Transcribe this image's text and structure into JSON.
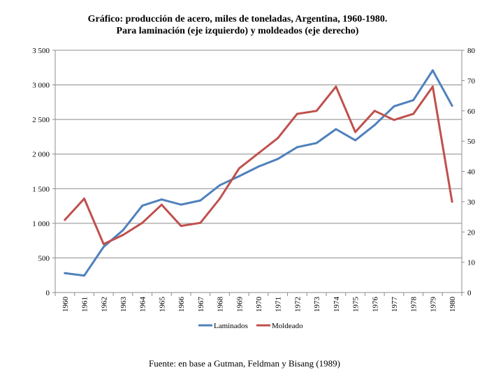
{
  "chart_data": {
    "type": "line",
    "title": "Gráfico: producción de acero, miles de toneladas, Argentina, 1960-1980.",
    "subtitle": "Para laminación (eje izquierdo) y moldeados (eje derecho)",
    "source": "Fuente: en base a Gutman, Feldman y Bisang (1989)",
    "categories": [
      "1960",
      "1961",
      "1962",
      "1963",
      "1964",
      "1965",
      "1966",
      "1967",
      "1968",
      "1969",
      "1970",
      "1971",
      "1972",
      "1973",
      "1974",
      "1975",
      "1976",
      "1977",
      "1978",
      "1979",
      "1980"
    ],
    "y_left": {
      "min": 0,
      "max": 3500,
      "ticks": [
        0,
        500,
        1000,
        1500,
        2000,
        2500,
        3000,
        3500
      ],
      "tick_labels": [
        "0",
        "500",
        "1 000",
        "1 500",
        "2 000",
        "2 500",
        "3 000",
        "3 500"
      ]
    },
    "y_right": {
      "min": 0,
      "max": 80,
      "ticks": [
        0,
        10,
        20,
        30,
        40,
        50,
        60,
        70,
        80
      ],
      "tick_labels": [
        "0",
        "10",
        "20",
        "30",
        "40",
        "50",
        "60",
        "70",
        "80"
      ]
    },
    "grid": true,
    "legend_position": "bottom",
    "series": [
      {
        "name": "Laminados",
        "axis": "left",
        "color": "#4f81bd",
        "values": [
          280,
          245,
          660,
          900,
          1255,
          1345,
          1270,
          1330,
          1550,
          1680,
          1820,
          1930,
          2100,
          2160,
          2360,
          2200,
          2420,
          2690,
          2780,
          3210,
          2700
        ]
      },
      {
        "name": "Moldeado",
        "axis": "right",
        "color": "#c0504d",
        "values": [
          24,
          31,
          16,
          19,
          23,
          29,
          22,
          23,
          31,
          41,
          46,
          51,
          59,
          60,
          68,
          53,
          60,
          57,
          59,
          68,
          30
        ]
      }
    ]
  }
}
